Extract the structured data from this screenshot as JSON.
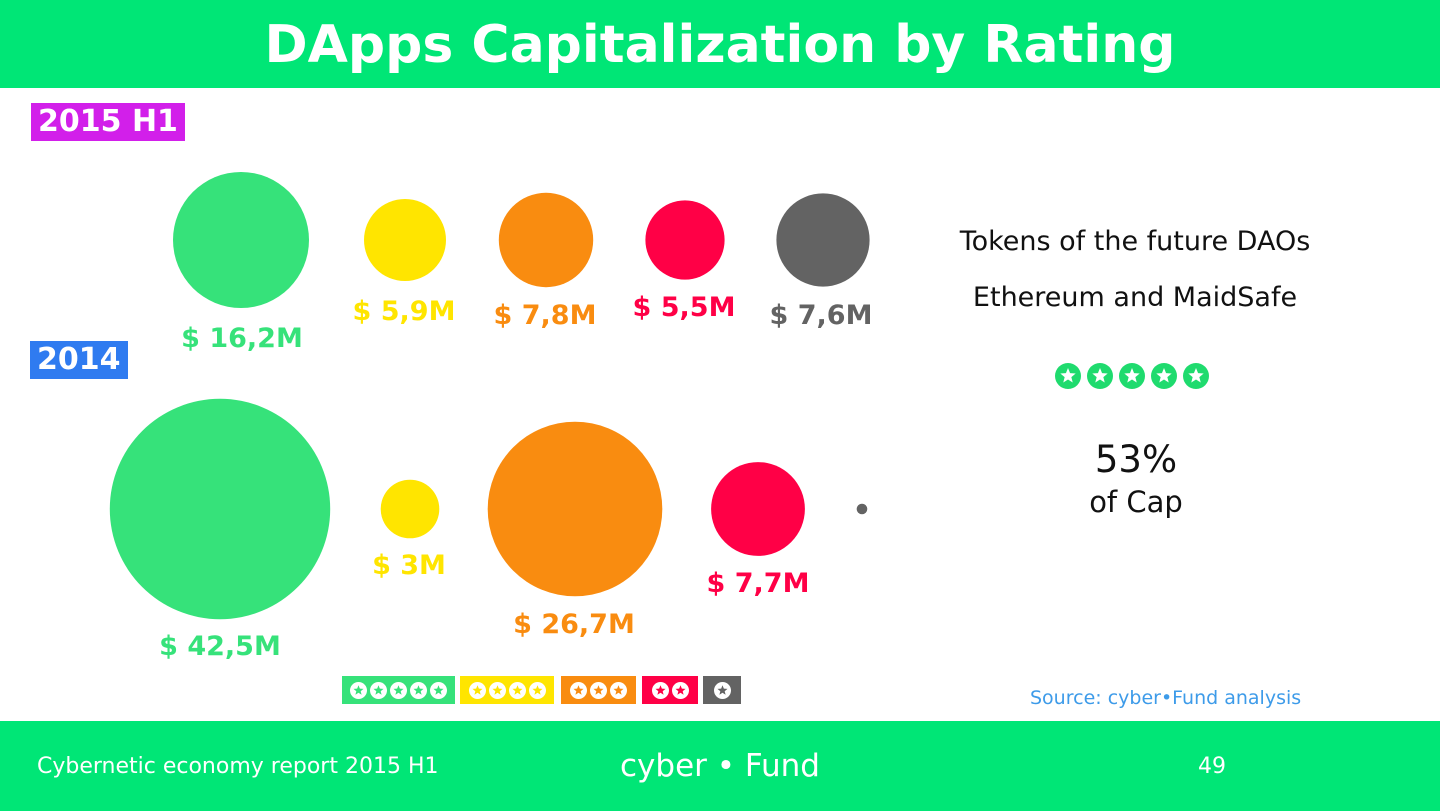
{
  "title": "DApps Capitalization by Rating",
  "chart_data": {
    "type": "bubble",
    "series": [
      {
        "name": "2015 H1",
        "values": [
          16.2,
          5.9,
          7.8,
          5.5,
          7.6
        ],
        "labels": [
          "$ 16,2M",
          "$ 5,9M",
          "$ 7,8M",
          "$ 5,5M",
          "$ 7,6M"
        ]
      },
      {
        "name": "2014",
        "values": [
          42.5,
          3,
          26.7,
          7.7,
          0.1
        ],
        "labels": [
          "$ 42,5M",
          "$ 3M",
          "$ 26,7M",
          "$ 7,7M",
          ""
        ]
      }
    ],
    "categories": [
      {
        "stars": 5,
        "color": "#36e27a"
      },
      {
        "stars": 4,
        "color": "#ffe500"
      },
      {
        "stars": 3,
        "color": "#f98c10"
      },
      {
        "stars": 2,
        "color": "#ff0046"
      },
      {
        "stars": 1,
        "color": "#636363"
      }
    ],
    "year_tag_colors": [
      "#d21fea",
      "#2f7bf0"
    ]
  },
  "side": {
    "line1": "Tokens of the future DAOs",
    "line2": "Ethereum and MaidSafe",
    "stars": 5,
    "percent": "53%",
    "percent_label": "of Cap"
  },
  "source": "Source: cyber•Fund analysis",
  "footer": {
    "left": "Cybernetic economy report 2015 H1",
    "center": "cyber • Fund",
    "page": "49"
  },
  "colors": {
    "brand_green": "#00e676",
    "star_green": "#1fdb6e",
    "source_blue": "#3d9be9"
  }
}
